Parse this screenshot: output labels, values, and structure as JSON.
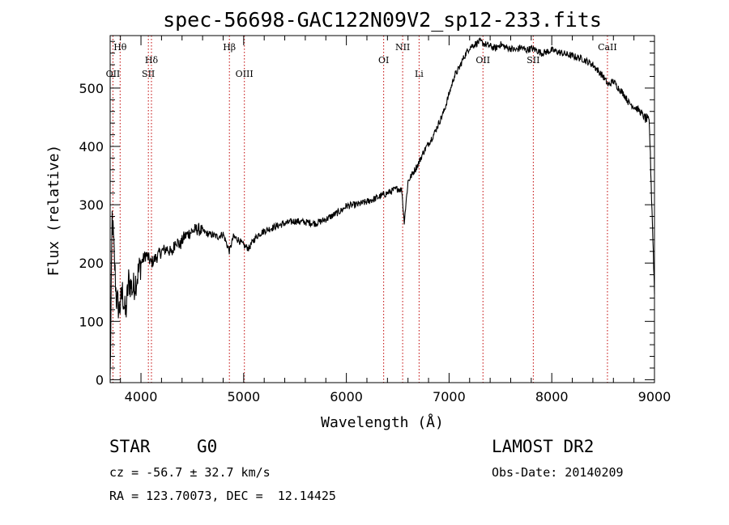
{
  "chart_data": {
    "type": "line",
    "title": "spec-56698-GAC122N09V2_sp12-233.fits",
    "xlabel": "Wavelength (Å)",
    "ylabel": "Flux (relative)",
    "xlim": [
      3700,
      9000
    ],
    "ylim": [
      -5,
      590
    ],
    "x_ticks": [
      4000,
      5000,
      6000,
      7000,
      8000,
      9000
    ],
    "y_ticks": [
      0,
      100,
      200,
      300,
      400,
      500
    ],
    "series": [
      {
        "name": "flux",
        "x": [
          3700,
          3720,
          3740,
          3760,
          3790,
          3820,
          3850,
          3880,
          3920,
          3960,
          4000,
          4050,
          4100,
          4150,
          4200,
          4260,
          4300,
          4340,
          4380,
          4420,
          4460,
          4500,
          4550,
          4600,
          4650,
          4700,
          4750,
          4800,
          4861,
          4900,
          4950,
          5000,
          5050,
          5100,
          5150,
          5200,
          5300,
          5400,
          5500,
          5600,
          5700,
          5800,
          5850,
          5900,
          5950,
          6000,
          6100,
          6200,
          6300,
          6400,
          6500,
          6540,
          6563,
          6600,
          6650,
          6700,
          6750,
          6800,
          6850,
          6900,
          6950,
          7000,
          7050,
          7100,
          7150,
          7200,
          7250,
          7300,
          7350,
          7400,
          7450,
          7500,
          7550,
          7600,
          7650,
          7700,
          7750,
          7800,
          7850,
          7900,
          7950,
          8000,
          8100,
          8200,
          8300,
          8400,
          8500,
          8550,
          8600,
          8650,
          8700,
          8750,
          8800,
          8850,
          8900,
          8950,
          9000
        ],
        "y": [
          0,
          280,
          210,
          140,
          120,
          150,
          110,
          170,
          155,
          175,
          200,
          215,
          200,
          210,
          220,
          225,
          215,
          240,
          230,
          245,
          250,
          255,
          258,
          255,
          250,
          248,
          245,
          250,
          220,
          245,
          240,
          230,
          225,
          240,
          250,
          255,
          262,
          268,
          272,
          270,
          268,
          275,
          280,
          285,
          290,
          298,
          300,
          305,
          312,
          320,
          328,
          325,
          270,
          340,
          355,
          370,
          390,
          405,
          420,
          440,
          460,
          490,
          520,
          535,
          555,
          570,
          575,
          580,
          575,
          572,
          568,
          575,
          570,
          568,
          565,
          570,
          565,
          568,
          565,
          560,
          562,
          565,
          560,
          555,
          550,
          540,
          520,
          505,
          512,
          500,
          490,
          475,
          468,
          462,
          450,
          442,
          150
        ]
      }
    ],
    "lines": [
      {
        "label": "Hθ",
        "x": 3797,
        "row": "top"
      },
      {
        "label": "OII",
        "x": 3727,
        "row": "low"
      },
      {
        "label": "Hδ",
        "x": 4102,
        "row": "mid"
      },
      {
        "label": "SII",
        "x": 4072,
        "row": "low"
      },
      {
        "label": "Hβ",
        "x": 4861,
        "row": "top"
      },
      {
        "label": "OIII",
        "x": 5007,
        "row": "low"
      },
      {
        "label": "OI",
        "x": 6363,
        "row": "mid"
      },
      {
        "label": "NII",
        "x": 6548,
        "row": "top"
      },
      {
        "label": "Li",
        "x": 6708,
        "row": "low"
      },
      {
        "label": "OII",
        "x": 7330,
        "row": "mid"
      },
      {
        "label": "SII",
        "x": 7820,
        "row": "mid"
      },
      {
        "label": "CaII",
        "x": 8542,
        "row": "top"
      }
    ],
    "line_color": "#c00000"
  },
  "info": {
    "class": "STAR",
    "subclass": "G0",
    "survey": "LAMOST DR2",
    "cz": "cz = -56.7 ± 32.7 km/s",
    "obs_date": "Obs-Date: 20140209",
    "coords": "RA = 123.70073, DEC =  12.14425"
  }
}
